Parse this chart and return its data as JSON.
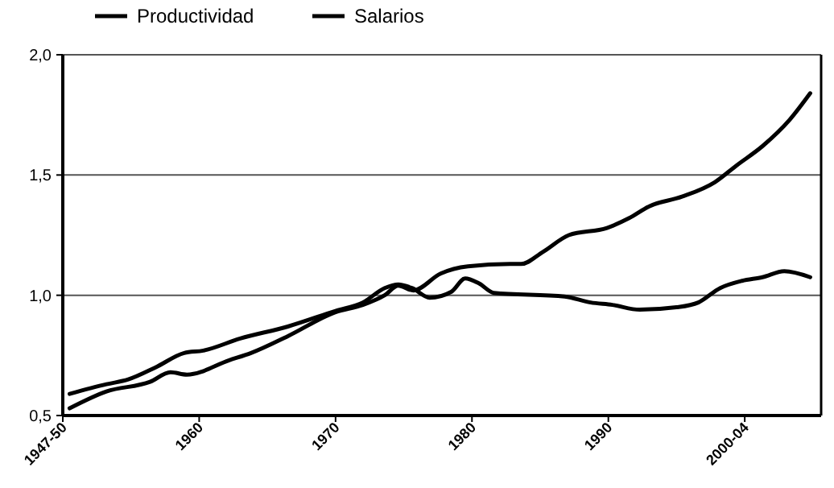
{
  "chart_data": {
    "type": "line",
    "legend": "top left",
    "grid": "y",
    "xlim": [
      1950,
      2005.6
    ],
    "ylim": [
      0.5,
      2.0
    ],
    "xticks": [
      {
        "value": 1950,
        "label": "1947-50"
      },
      1960,
      1970,
      1980,
      1990,
      {
        "value": 2000,
        "label": "2000-04"
      }
    ],
    "yticks": [
      {
        "value": 0.5,
        "label": "0,5"
      },
      {
        "value": 1.0,
        "label": "1,0"
      },
      {
        "value": 1.5,
        "label": "1,5"
      },
      {
        "value": 2.0,
        "label": "2,0"
      }
    ],
    "series": [
      {
        "name": "Productividad",
        "color": "#000000",
        "x": [
          1950.5,
          1953.2,
          1956.4,
          1957.9,
          1959.1,
          1962.2,
          1963.8,
          1966.5,
          1970,
          1972,
          1973.6,
          1974.6,
          1975.7,
          1977.7,
          1979.7,
          1982.8,
          1983.6,
          1985.2,
          1987.1,
          1989.9,
          1991.5,
          1993,
          1995.4,
          1997.8,
          1999.4,
          2001.3,
          2003.3,
          2004.8
        ],
        "values": [
          0.53,
          0.6,
          0.64,
          0.68,
          0.67,
          0.73,
          0.76,
          0.83,
          0.93,
          0.96,
          1.0,
          1.04,
          1.02,
          1.09,
          1.12,
          1.13,
          1.13,
          1.18,
          1.25,
          1.28,
          1.32,
          1.37,
          1.41,
          1.47,
          1.54,
          1.62,
          1.73,
          1.84
        ]
      },
      {
        "name": "Salarios",
        "color": "#000000",
        "x": [
          1950.5,
          1953.2,
          1954.8,
          1956.8,
          1958.9,
          1960.3,
          1963,
          1966.5,
          1970,
          1972,
          1973.6,
          1974.6,
          1975.6,
          1976.9,
          1978.5,
          1979.5,
          1980.5,
          1981.6,
          1986.8,
          1988.7,
          1990.3,
          1992.3,
          1995,
          1996.6,
          1998.2,
          1999.8,
          2001.3,
          2002.9,
          2004.8
        ],
        "values": [
          0.59,
          0.63,
          0.65,
          0.7,
          0.76,
          0.77,
          0.82,
          0.87,
          0.935,
          0.97,
          1.03,
          1.045,
          1.03,
          0.99,
          1.015,
          1.07,
          1.05,
          1.01,
          0.995,
          0.97,
          0.96,
          0.94,
          0.95,
          0.97,
          1.03,
          1.06,
          1.075,
          1.1,
          1.075
        ]
      }
    ]
  }
}
